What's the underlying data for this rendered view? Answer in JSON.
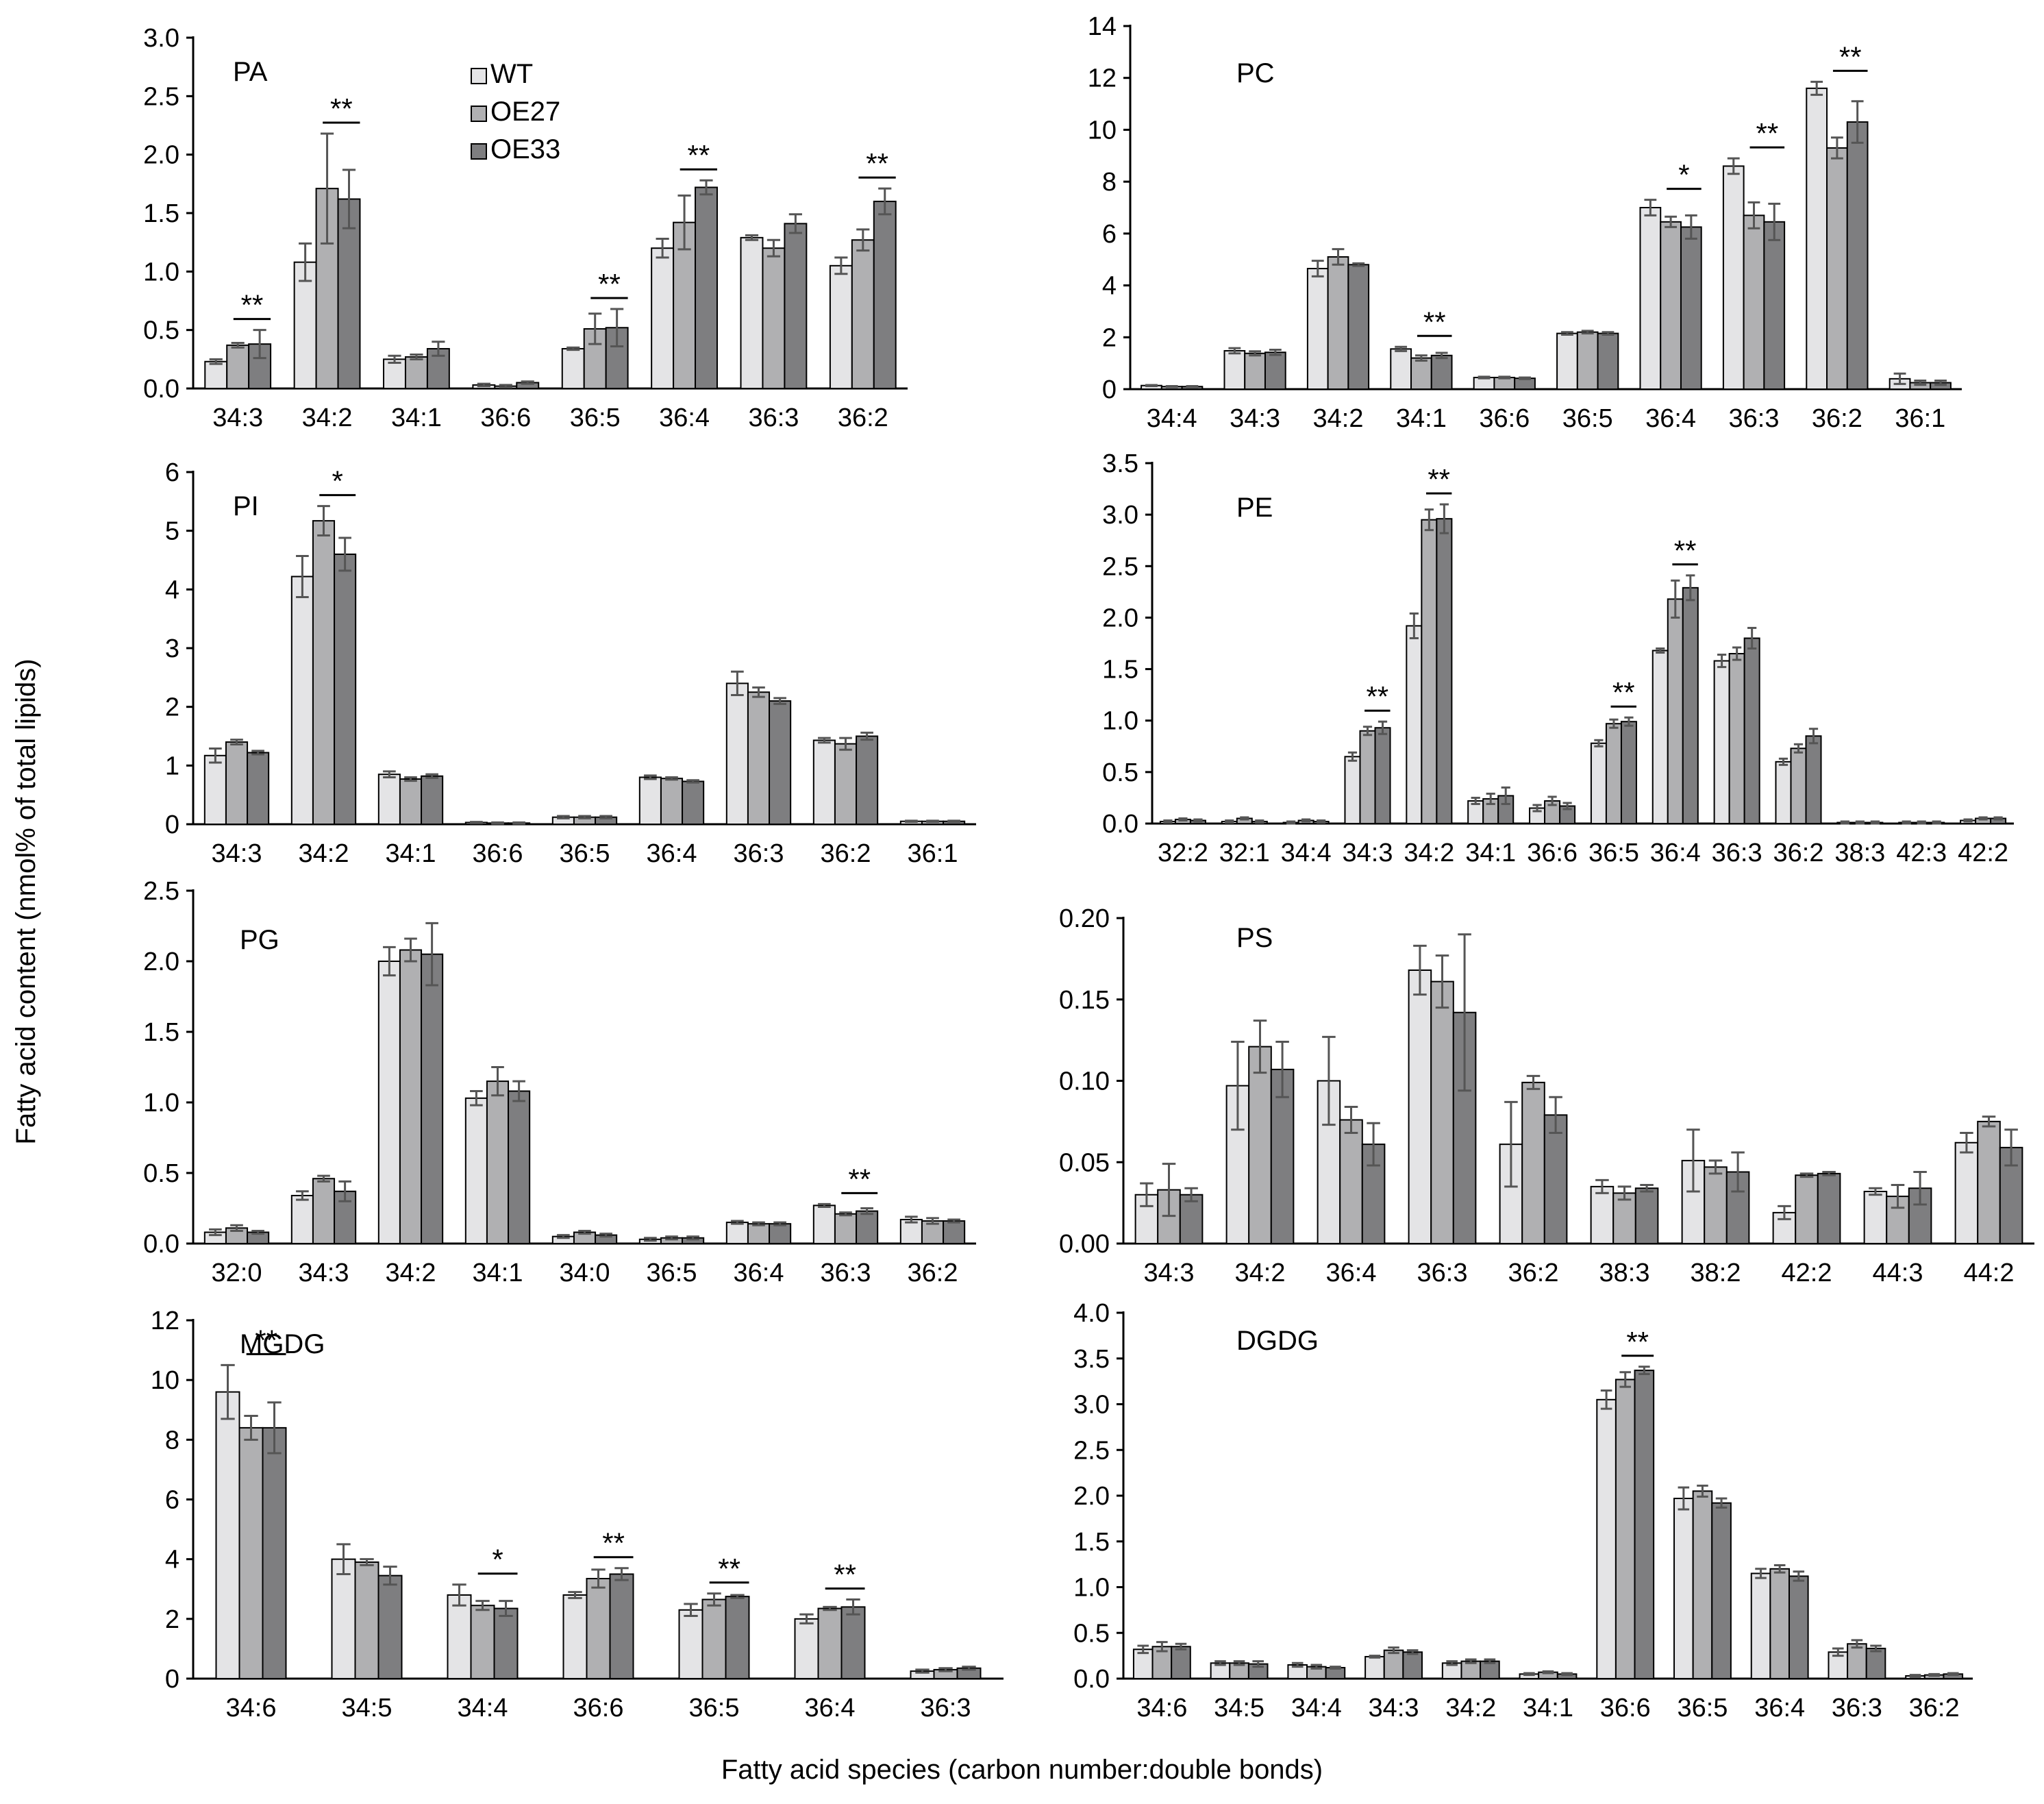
{
  "figure": {
    "ylabel": "Fatty acid content (nmol% of total lipids)",
    "xlabel": "Fatty acid species (carbon number:double bonds)",
    "legend": [
      "WT",
      "OE27",
      "OE33"
    ],
    "colors": [
      "#e4e4e6",
      "#b0b0b2",
      "#7e7e80"
    ]
  },
  "chart_data": [
    {
      "type": "bar",
      "title": "PA",
      "ylim": [
        0,
        3
      ],
      "yticks": [
        "0.0",
        "0.5",
        "1.0",
        "1.5",
        "2.0",
        "2.5",
        "3.0"
      ],
      "categories": [
        "34:3",
        "34:2",
        "34:1",
        "36:6",
        "36:5",
        "36:4",
        "36:3",
        "36:2"
      ],
      "series": [
        {
          "name": "WT",
          "values": [
            0.23,
            1.08,
            0.25,
            0.03,
            0.34,
            1.2,
            1.29,
            1.05
          ],
          "errors": [
            0.02,
            0.16,
            0.03,
            0.01,
            0.01,
            0.08,
            0.02,
            0.07
          ]
        },
        {
          "name": "OE27",
          "values": [
            0.37,
            1.71,
            0.27,
            0.02,
            0.51,
            1.42,
            1.2,
            1.27
          ],
          "errors": [
            0.02,
            0.47,
            0.02,
            0.01,
            0.13,
            0.23,
            0.07,
            0.09
          ]
        },
        {
          "name": "OE33",
          "values": [
            0.38,
            1.62,
            0.34,
            0.05,
            0.52,
            1.72,
            1.41,
            1.6
          ],
          "errors": [
            0.12,
            0.25,
            0.06,
            0.01,
            0.16,
            0.06,
            0.08,
            0.11
          ]
        }
      ],
      "significance": [
        {
          "index": 0,
          "label": "**"
        },
        {
          "index": 1,
          "label": "**"
        },
        {
          "index": 4,
          "label": "**"
        },
        {
          "index": 5,
          "label": "**"
        },
        {
          "index": 7,
          "label": "**"
        }
      ],
      "show_legend": true
    },
    {
      "type": "bar",
      "title": "PC",
      "ylim": [
        0,
        14
      ],
      "yticks": [
        "0",
        "2",
        "4",
        "6",
        "8",
        "10",
        "12",
        "14"
      ],
      "categories": [
        "34:4",
        "34:3",
        "34:2",
        "34:1",
        "36:6",
        "36:5",
        "36:4",
        "36:3",
        "36:2",
        "36:1"
      ],
      "series": [
        {
          "name": "WT",
          "values": [
            0.14,
            1.48,
            4.65,
            1.55,
            0.45,
            2.15,
            7.0,
            8.6,
            11.6,
            0.4
          ],
          "errors": [
            0.02,
            0.1,
            0.3,
            0.08,
            0.03,
            0.05,
            0.3,
            0.3,
            0.25,
            0.2
          ]
        },
        {
          "name": "OE27",
          "values": [
            0.1,
            1.38,
            5.1,
            1.2,
            0.45,
            2.2,
            6.45,
            6.7,
            9.3,
            0.25
          ],
          "errors": [
            0.02,
            0.08,
            0.3,
            0.1,
            0.03,
            0.05,
            0.2,
            0.5,
            0.4,
            0.08
          ]
        },
        {
          "name": "OE33",
          "values": [
            0.1,
            1.42,
            4.8,
            1.3,
            0.42,
            2.15,
            6.25,
            6.45,
            10.3,
            0.25
          ],
          "errors": [
            0.02,
            0.1,
            0.05,
            0.1,
            0.03,
            0.05,
            0.45,
            0.7,
            0.8,
            0.08
          ]
        }
      ],
      "significance": [
        {
          "index": 3,
          "label": "**"
        },
        {
          "index": 6,
          "label": "*"
        },
        {
          "index": 7,
          "label": "**"
        },
        {
          "index": 8,
          "label": "**"
        }
      ]
    },
    {
      "type": "bar",
      "title": "PI",
      "ylim": [
        0,
        6
      ],
      "yticks": [
        "0",
        "1",
        "2",
        "3",
        "4",
        "5",
        "6"
      ],
      "categories": [
        "34:3",
        "34:2",
        "34:1",
        "36:6",
        "36:5",
        "36:4",
        "36:3",
        "36:2",
        "36:1"
      ],
      "series": [
        {
          "name": "WT",
          "values": [
            1.17,
            4.22,
            0.85,
            0.03,
            0.12,
            0.8,
            2.4,
            1.43,
            0.05
          ],
          "errors": [
            0.12,
            0.35,
            0.05,
            0.01,
            0.02,
            0.03,
            0.2,
            0.04,
            0.01
          ]
        },
        {
          "name": "OE27",
          "values": [
            1.4,
            5.17,
            0.77,
            0.02,
            0.12,
            0.78,
            2.25,
            1.37,
            0.05
          ],
          "errors": [
            0.04,
            0.25,
            0.03,
            0.01,
            0.02,
            0.02,
            0.08,
            0.1,
            0.01
          ]
        },
        {
          "name": "OE33",
          "values": [
            1.22,
            4.6,
            0.82,
            0.02,
            0.12,
            0.73,
            2.1,
            1.5,
            0.05
          ],
          "errors": [
            0.03,
            0.28,
            0.03,
            0.01,
            0.02,
            0.02,
            0.05,
            0.06,
            0.01
          ]
        }
      ],
      "significance": [
        {
          "index": 1,
          "label": "*"
        }
      ]
    },
    {
      "type": "bar",
      "title": "PE",
      "ylim": [
        0,
        3.5
      ],
      "yticks": [
        "0.0",
        "0.5",
        "1.0",
        "1.5",
        "2.0",
        "2.5",
        "3.0",
        "3.5"
      ],
      "categories": [
        "32:2",
        "32:1",
        "34:4",
        "34:3",
        "34:2",
        "34:1",
        "36:6",
        "36:5",
        "36:4",
        "36:3",
        "36:2",
        "38:3",
        "42:3",
        "42:2"
      ],
      "series": [
        {
          "name": "WT",
          "values": [
            0.02,
            0.02,
            0.01,
            0.65,
            1.92,
            0.22,
            0.15,
            0.78,
            1.68,
            1.58,
            0.6,
            0.01,
            0.01,
            0.03
          ],
          "errors": [
            0.01,
            0.01,
            0.01,
            0.04,
            0.12,
            0.03,
            0.03,
            0.03,
            0.02,
            0.06,
            0.03,
            0.01,
            0.01,
            0.01
          ]
        },
        {
          "name": "OE27",
          "values": [
            0.04,
            0.05,
            0.03,
            0.9,
            2.95,
            0.24,
            0.22,
            0.97,
            2.18,
            1.65,
            0.73,
            0.01,
            0.01,
            0.05
          ],
          "errors": [
            0.01,
            0.01,
            0.01,
            0.04,
            0.1,
            0.05,
            0.04,
            0.04,
            0.18,
            0.06,
            0.04,
            0.01,
            0.01,
            0.01
          ]
        },
        {
          "name": "OE33",
          "values": [
            0.03,
            0.02,
            0.02,
            0.93,
            2.96,
            0.27,
            0.17,
            0.99,
            2.29,
            1.8,
            0.85,
            0.01,
            0.01,
            0.05
          ],
          "errors": [
            0.01,
            0.01,
            0.01,
            0.06,
            0.14,
            0.08,
            0.03,
            0.04,
            0.12,
            0.1,
            0.07,
            0.01,
            0.01,
            0.01
          ]
        }
      ],
      "significance": [
        {
          "index": 3,
          "label": "**"
        },
        {
          "index": 4,
          "label": "**"
        },
        {
          "index": 7,
          "label": "**"
        },
        {
          "index": 8,
          "label": "**"
        }
      ]
    },
    {
      "type": "bar",
      "title": "PG",
      "ylim": [
        0,
        2.5
      ],
      "yticks": [
        "0.0",
        "0.5",
        "1.0",
        "1.5",
        "2.0",
        "2.5"
      ],
      "categories": [
        "32:0",
        "34:3",
        "34:2",
        "34:1",
        "34:0",
        "36:5",
        "36:4",
        "36:3",
        "36:2"
      ],
      "series": [
        {
          "name": "WT",
          "values": [
            0.08,
            0.34,
            2.0,
            1.03,
            0.05,
            0.03,
            0.15,
            0.27,
            0.17
          ],
          "errors": [
            0.02,
            0.03,
            0.1,
            0.05,
            0.01,
            0.01,
            0.01,
            0.01,
            0.02
          ]
        },
        {
          "name": "OE27",
          "values": [
            0.11,
            0.46,
            2.08,
            1.15,
            0.08,
            0.04,
            0.14,
            0.21,
            0.16
          ],
          "errors": [
            0.02,
            0.02,
            0.08,
            0.1,
            0.01,
            0.01,
            0.01,
            0.01,
            0.02
          ]
        },
        {
          "name": "OE33",
          "values": [
            0.08,
            0.37,
            2.05,
            1.08,
            0.06,
            0.04,
            0.14,
            0.23,
            0.16
          ],
          "errors": [
            0.01,
            0.07,
            0.22,
            0.07,
            0.01,
            0.01,
            0.01,
            0.02,
            0.01
          ]
        }
      ],
      "significance": [
        {
          "index": 7,
          "label": "**"
        }
      ]
    },
    {
      "type": "bar",
      "title": "PS",
      "ylim": [
        0,
        0.2
      ],
      "yticks": [
        "0.00",
        "0.05",
        "0.10",
        "0.15",
        "0.20"
      ],
      "categories": [
        "34:3",
        "34:2",
        "36:4",
        "36:3",
        "36:2",
        "38:3",
        "38:2",
        "42:2",
        "44:3",
        "44:2"
      ],
      "series": [
        {
          "name": "WT",
          "values": [
            0.03,
            0.097,
            0.1,
            0.168,
            0.061,
            0.035,
            0.051,
            0.019,
            0.032,
            0.062
          ],
          "errors": [
            0.007,
            0.027,
            0.027,
            0.015,
            0.026,
            0.004,
            0.019,
            0.004,
            0.002,
            0.006
          ]
        },
        {
          "name": "OE27",
          "values": [
            0.033,
            0.121,
            0.076,
            0.161,
            0.099,
            0.031,
            0.047,
            0.042,
            0.029,
            0.075
          ],
          "errors": [
            0.016,
            0.016,
            0.008,
            0.016,
            0.004,
            0.004,
            0.004,
            0.001,
            0.007,
            0.003
          ]
        },
        {
          "name": "OE33",
          "values": [
            0.03,
            0.107,
            0.061,
            0.142,
            0.079,
            0.034,
            0.044,
            0.043,
            0.034,
            0.059
          ],
          "errors": [
            0.004,
            0.017,
            0.013,
            0.048,
            0.011,
            0.002,
            0.012,
            0.001,
            0.01,
            0.011
          ]
        }
      ],
      "significance": []
    },
    {
      "type": "bar",
      "title": "MGDG",
      "ylim": [
        0,
        12
      ],
      "yticks": [
        "0",
        "2",
        "4",
        "6",
        "8",
        "10",
        "12"
      ],
      "categories": [
        "34:6",
        "34:5",
        "34:4",
        "36:6",
        "36:5",
        "36:4",
        "36:3"
      ],
      "series": [
        {
          "name": "WT",
          "values": [
            9.6,
            4.0,
            2.8,
            2.8,
            2.3,
            2.0,
            0.25
          ],
          "errors": [
            0.9,
            0.5,
            0.35,
            0.1,
            0.2,
            0.15,
            0.05
          ]
        },
        {
          "name": "OE27",
          "values": [
            8.4,
            3.9,
            2.45,
            3.35,
            2.65,
            2.35,
            0.3
          ],
          "errors": [
            0.4,
            0.1,
            0.15,
            0.3,
            0.2,
            0.05,
            0.05
          ]
        },
        {
          "name": "OE33",
          "values": [
            8.4,
            3.45,
            2.35,
            3.5,
            2.75,
            2.4,
            0.35
          ],
          "errors": [
            0.85,
            0.3,
            0.25,
            0.2,
            0.05,
            0.25,
            0.05
          ]
        }
      ],
      "significance": [
        {
          "index": 0,
          "label": "**"
        },
        {
          "index": 2,
          "label": "*"
        },
        {
          "index": 3,
          "label": "**"
        },
        {
          "index": 4,
          "label": "**"
        },
        {
          "index": 5,
          "label": "**"
        }
      ]
    },
    {
      "type": "bar",
      "title": "DGDG",
      "ylim": [
        0,
        4
      ],
      "yticks": [
        "0.0",
        "0.5",
        "1.0",
        "1.5",
        "2.0",
        "2.5",
        "3.0",
        "3.5",
        "4.0"
      ],
      "categories": [
        "34:6",
        "34:5",
        "34:4",
        "34:3",
        "34:2",
        "34:1",
        "36:6",
        "36:5",
        "36:4",
        "36:3",
        "36:2"
      ],
      "series": [
        {
          "name": "WT",
          "values": [
            0.32,
            0.17,
            0.15,
            0.24,
            0.17,
            0.05,
            3.05,
            1.97,
            1.15,
            0.29,
            0.03
          ],
          "errors": [
            0.04,
            0.02,
            0.02,
            0.01,
            0.02,
            0.01,
            0.1,
            0.12,
            0.05,
            0.04,
            0.01
          ]
        },
        {
          "name": "OE27",
          "values": [
            0.35,
            0.17,
            0.13,
            0.31,
            0.19,
            0.07,
            3.27,
            2.05,
            1.2,
            0.38,
            0.04
          ],
          "errors": [
            0.05,
            0.02,
            0.02,
            0.03,
            0.02,
            0.01,
            0.08,
            0.06,
            0.04,
            0.04,
            0.01
          ]
        },
        {
          "name": "OE33",
          "values": [
            0.35,
            0.16,
            0.12,
            0.29,
            0.19,
            0.05,
            3.37,
            1.92,
            1.12,
            0.33,
            0.05
          ],
          "errors": [
            0.03,
            0.03,
            0.01,
            0.02,
            0.02,
            0.01,
            0.04,
            0.05,
            0.05,
            0.03,
            0.01
          ]
        }
      ],
      "significance": [
        {
          "index": 6,
          "label": "**"
        }
      ]
    }
  ]
}
